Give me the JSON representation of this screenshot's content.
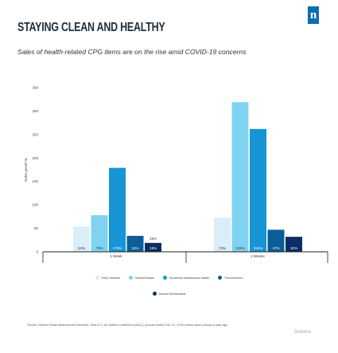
{
  "header": {
    "title": "STAYING CLEAN AND HEALTHY",
    "subtitle": "Sales of health-related CPG items are on the rise amid COVID-19 concerns",
    "logo_text": "n"
  },
  "chart_data": {
    "type": "bar",
    "title": "STAYING CLEAN AND HEALTHY",
    "ylabel": "Dollar growth %",
    "xlabel": "",
    "ylim": [
      0,
      350
    ],
    "yticks": [
      0,
      50,
      100,
      150,
      200,
      250,
      300,
      350
    ],
    "categories": [
      "1 Week",
      "4 Weeks"
    ],
    "series": [
      {
        "name": "Hand Sanitizer",
        "color": "#d9eef8",
        "values": [
          54,
          73
        ],
        "labels": [
          "54%",
          "73%"
        ]
      },
      {
        "name": "Medical Masks",
        "color": "#7fd3f0",
        "values": [
          78,
          319
        ],
        "labels": [
          "78%",
          "319%"
        ]
      },
      {
        "name": "Household Maintenance Masks",
        "color": "#1794d4",
        "values": [
          179,
          262
        ],
        "labels": [
          "179%",
          "262%"
        ]
      },
      {
        "name": "Thermometers",
        "color": "#0b5e98",
        "values": [
          34,
          47
        ],
        "labels": [
          "34%",
          "47%"
        ]
      },
      {
        "name": "Aerosol Disinfectants",
        "color": "#0a2e63",
        "values": [
          19,
          32
        ],
        "labels": [
          "19%",
          "32%"
        ]
      }
    ]
  },
  "legend": {
    "items": [
      {
        "name": "Hand Sanitizer",
        "color": "#d9eef8"
      },
      {
        "name": "Medical Masks",
        "color": "#7fd3f0"
      },
      {
        "name": "Household Maintenance Masks",
        "color": "#1794d4"
      },
      {
        "name": "Thermometers",
        "color": "#0b5e98"
      },
      {
        "name": "Aerosol Disinfectants",
        "color": "#0a2e63"
      }
    ]
  },
  "footer": {
    "source": "Source: Nielsen Retail Measurement Services, Total U.S. All Outlets Combined (xAOC), periods ended Feb. 22, 2020 versus same periods a year-ago",
    "watermark": "Dolcera"
  }
}
